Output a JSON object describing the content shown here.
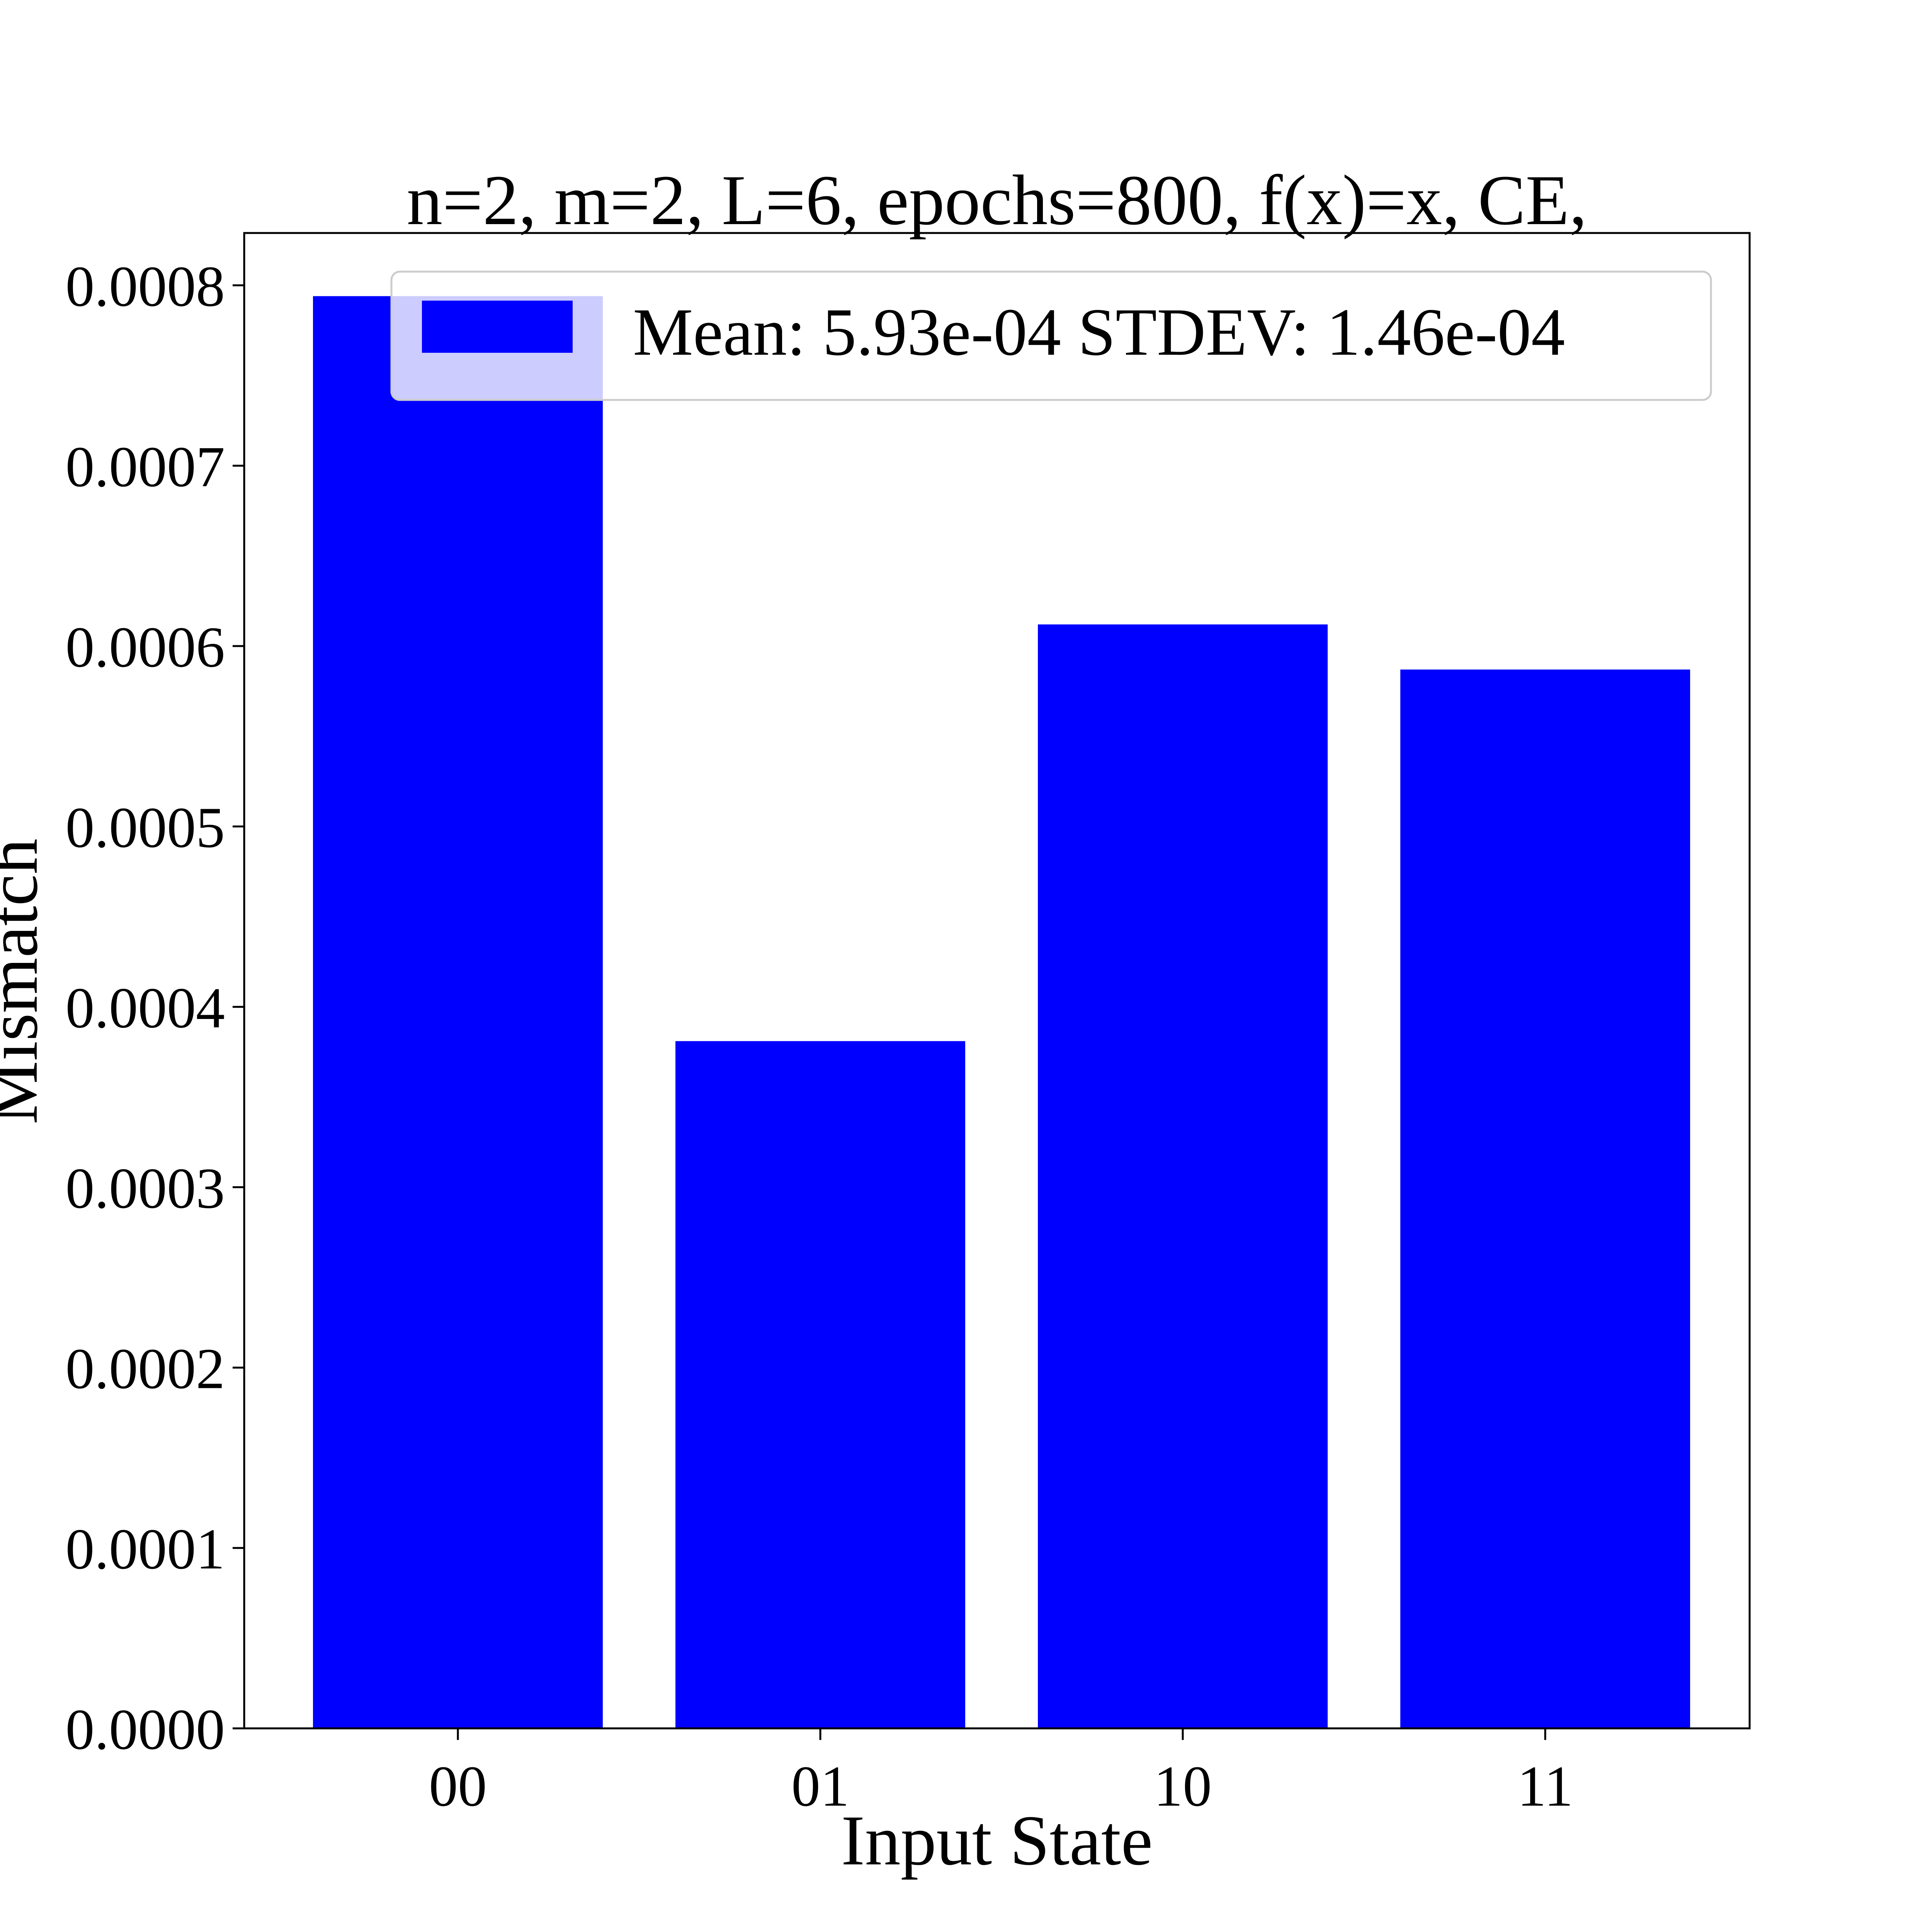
{
  "chart_data": {
    "type": "bar",
    "title": "n=2, m=2, L=6, epochs=800, f(x)=x, CE,",
    "xlabel": "Input State",
    "ylabel": "Mismatch",
    "categories": [
      "00",
      "01",
      "10",
      "11"
    ],
    "values": [
      0.000794,
      0.000381,
      0.000612,
      0.000587
    ],
    "ylim": [
      0,
      0.000829
    ],
    "yticks": [
      0.0,
      0.0001,
      0.0002,
      0.0003,
      0.0004,
      0.0005,
      0.0006,
      0.0007,
      0.0008
    ],
    "ytick_labels": [
      "0.0000",
      "0.0001",
      "0.0002",
      "0.0003",
      "0.0004",
      "0.0005",
      "0.0006",
      "0.0007",
      "0.0008"
    ],
    "bar_color": "#0000ff",
    "grid": false,
    "legend": {
      "placement": "top-right",
      "entries": [
        {
          "label": "Mean: 5.93e-04 STDEV: 1.46e-04",
          "color": "#0000ff"
        }
      ]
    }
  }
}
